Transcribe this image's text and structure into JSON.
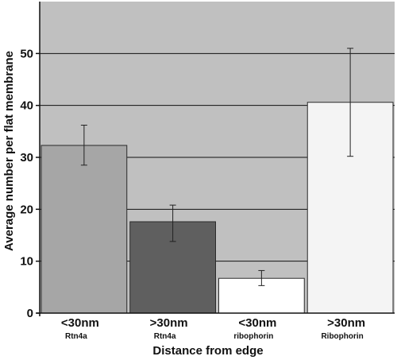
{
  "chart_data": {
    "type": "bar",
    "categories": [
      {
        "main": "<30nm",
        "sub": "Rtn4a"
      },
      {
        "main": ">30nm",
        "sub": "Rtn4a"
      },
      {
        "main": "<30nm",
        "sub": "ribophorin"
      },
      {
        "main": ">30nm",
        "sub": "Ribophorin"
      }
    ],
    "values": [
      32.3,
      17.6,
      6.7,
      40.6
    ],
    "error_bars": [
      {
        "low": 28.5,
        "high": 36.2
      },
      {
        "low": 13.8,
        "high": 20.8
      },
      {
        "low": 5.3,
        "high": 8.2
      },
      {
        "low": 30.2,
        "high": 51.0
      }
    ],
    "bar_colors": [
      "#a6a6a6",
      "#5f5f5f",
      "#ffffff",
      "#f4f4f4"
    ],
    "plot_background": "#c0c0c0",
    "xlabel": "Distance from edge",
    "ylabel": "Average number per flat membrane",
    "ylim": [
      0,
      60
    ],
    "yticks": [
      0,
      10,
      20,
      30,
      40,
      50
    ],
    "grid": true
  }
}
